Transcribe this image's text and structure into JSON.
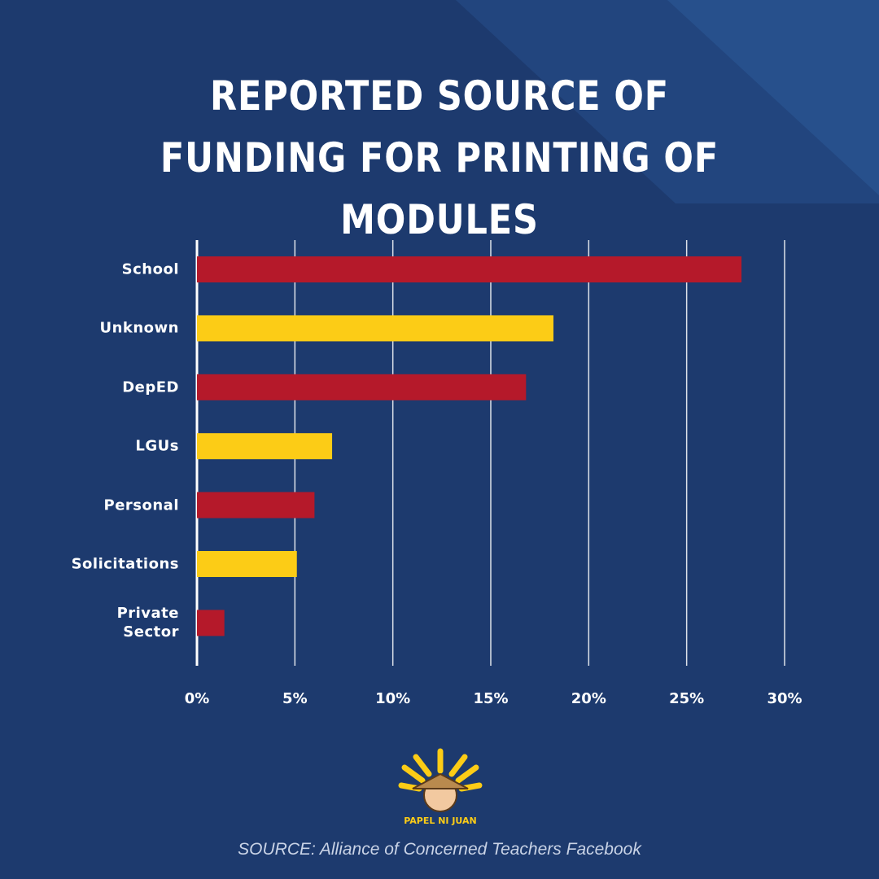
{
  "chart_data": {
    "type": "bar",
    "orientation": "horizontal",
    "title": "REPORTED SOURCE OF FUNDING FOR PRINTING OF MODULES",
    "categories": [
      "School",
      "Unknown",
      "DepED",
      "LGUs",
      "Personal",
      "Solicitations",
      "Private Sector"
    ],
    "values": [
      27.8,
      18.2,
      16.8,
      6.9,
      6.0,
      5.1,
      1.4
    ],
    "colors": [
      "#b5192a",
      "#fccc16",
      "#b5192a",
      "#fccc16",
      "#b5192a",
      "#fccc16",
      "#b5192a"
    ],
    "xlim": [
      0,
      30
    ],
    "xticks": [
      {
        "value": 0,
        "label": "0%"
      },
      {
        "value": 5,
        "label": "5%"
      },
      {
        "value": 10,
        "label": "10%"
      },
      {
        "value": 15,
        "label": "15%"
      },
      {
        "value": 20,
        "label": "20%"
      },
      {
        "value": 25,
        "label": "25%"
      },
      {
        "value": 30,
        "label": "30%"
      }
    ],
    "grid": true
  },
  "logo": "PAPEL NI JUAN",
  "source": "SOURCE: Alliance of Concerned Teachers Facebook"
}
